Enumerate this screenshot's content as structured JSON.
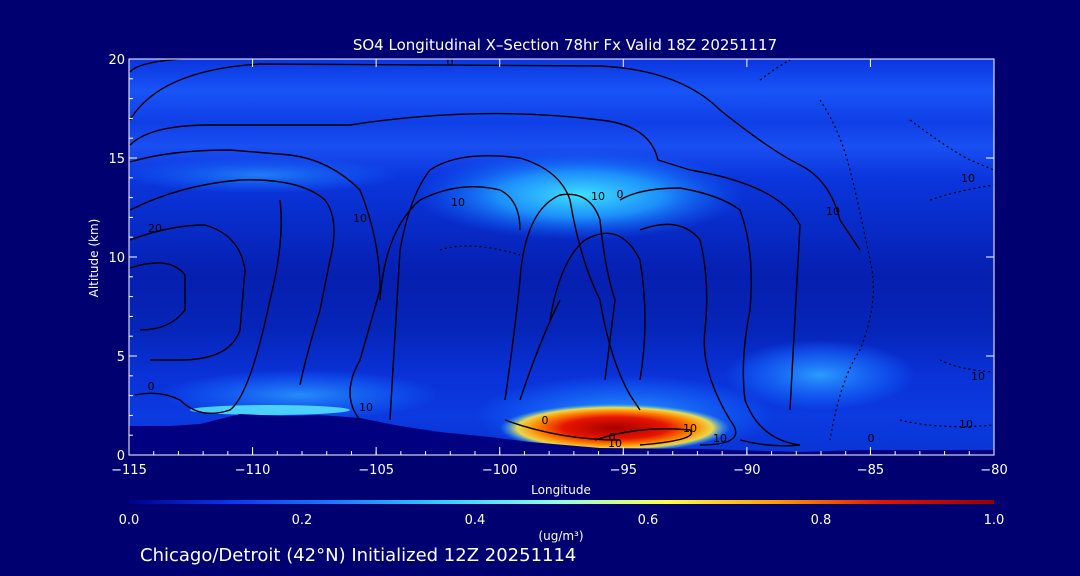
{
  "chart_data": {
    "type": "heatmap",
    "title": "SO4 Longitudinal X–Section 78hr  Fx Valid 18Z 20251117",
    "xlabel": "Longitude",
    "ylabel": "Altitude (km)",
    "xlim": [
      -115,
      -80
    ],
    "ylim": [
      0,
      20
    ],
    "x_ticks": [
      -115,
      -110,
      -105,
      -100,
      -95,
      -90,
      -85,
      -80
    ],
    "x_tick_labels": [
      "−115",
      "−110",
      "−105",
      "−100",
      "−95",
      "−90",
      "−85",
      "−80"
    ],
    "y_ticks": [
      0,
      5,
      10,
      15,
      20
    ],
    "y_tick_labels": [
      "0",
      "5",
      "10",
      "15",
      "20"
    ],
    "colorbar": {
      "min": 0.0,
      "max": 1.0,
      "ticks": [
        0.0,
        0.2,
        0.4,
        0.6,
        0.8,
        1.0
      ],
      "tick_labels": [
        "0.0",
        "0.2",
        "0.4",
        "0.6",
        "0.8",
        "1.0"
      ],
      "unit_label": "(ug/m³)",
      "colors": [
        "#00008a",
        "#0a38f0",
        "#1e82ff",
        "#37d2ff",
        "#96ffe1",
        "#ffff46",
        "#ff9b00",
        "#e61400",
        "#960000"
      ]
    },
    "max_concentration": {
      "lon": -96,
      "alt": 1.2,
      "value": 1.0
    },
    "contour_labels": [
      "0",
      "10",
      "20",
      "10",
      "10",
      "0",
      "10",
      "0",
      "10",
      "0",
      "10",
      "0",
      "10",
      "10",
      "10",
      "10",
      "10",
      "0"
    ],
    "footer": "Chicago/Detroit (42°N) Initialized 12Z 20251114"
  },
  "colors": {
    "background": "#000070",
    "text": "#ffffff",
    "contour": "#000000",
    "terrain": "#000080"
  }
}
